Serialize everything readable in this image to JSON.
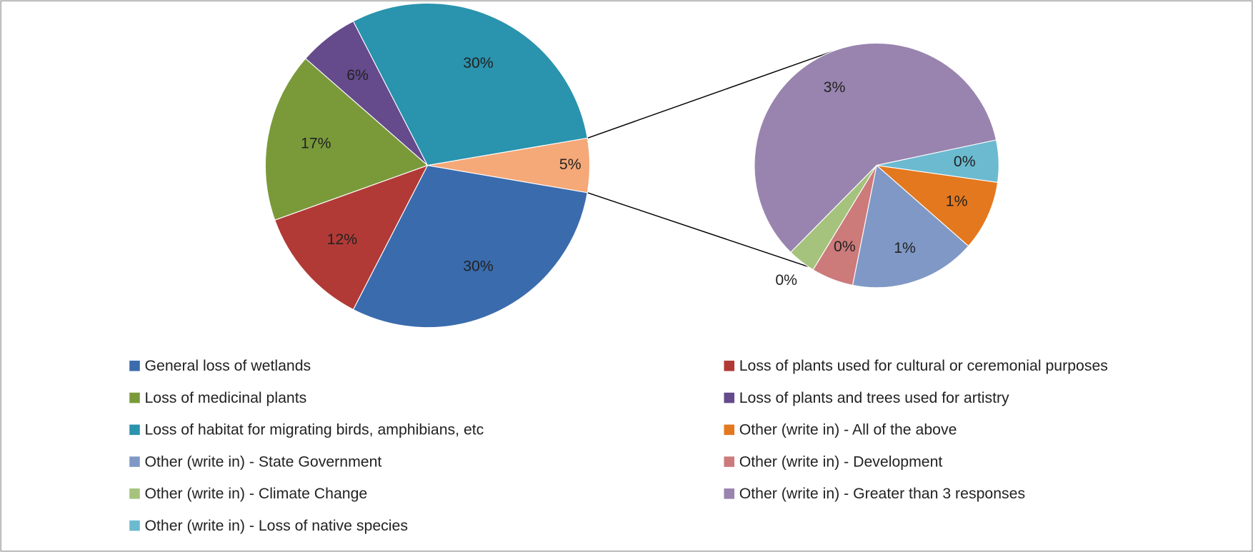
{
  "chart_data": {
    "type": "pie-of-pie",
    "categories": [
      "General loss of wetlands",
      "Loss of plants used for cultural or ceremonial purposes",
      "Loss of medicinal plants",
      "Loss of plants and trees used for artistry",
      "Loss of habitat for migrating birds, amphibians, etc",
      "Other (write in) - All of the above",
      "Other (write in) - State Government",
      "Other (write in) - Development",
      "Other (write in) - Climate Change",
      "Other (write in) - Greater than 3 responses",
      "Other (write in) - Loss of native species"
    ],
    "values": [
      30,
      12,
      17,
      6,
      30,
      0.5,
      0.9,
      0.3,
      0.2,
      3.2,
      0.3
    ],
    "value_labels": [
      "30%",
      "12%",
      "17%",
      "6%",
      "30%",
      "1%",
      "1%",
      "0%",
      "0%",
      "3%",
      "0%"
    ],
    "colors": [
      "#3a6bad",
      "#b13a36",
      "#7a9a3a",
      "#654a8c",
      "#2a93ad",
      "#e4781f",
      "#7f98c6",
      "#cc7a7a",
      "#a5c37d",
      "#9884ae",
      "#6bbad0"
    ],
    "other_color": "#f5a878",
    "other_value_label": "5%",
    "secondary_count": 6,
    "legend": "bottom"
  }
}
